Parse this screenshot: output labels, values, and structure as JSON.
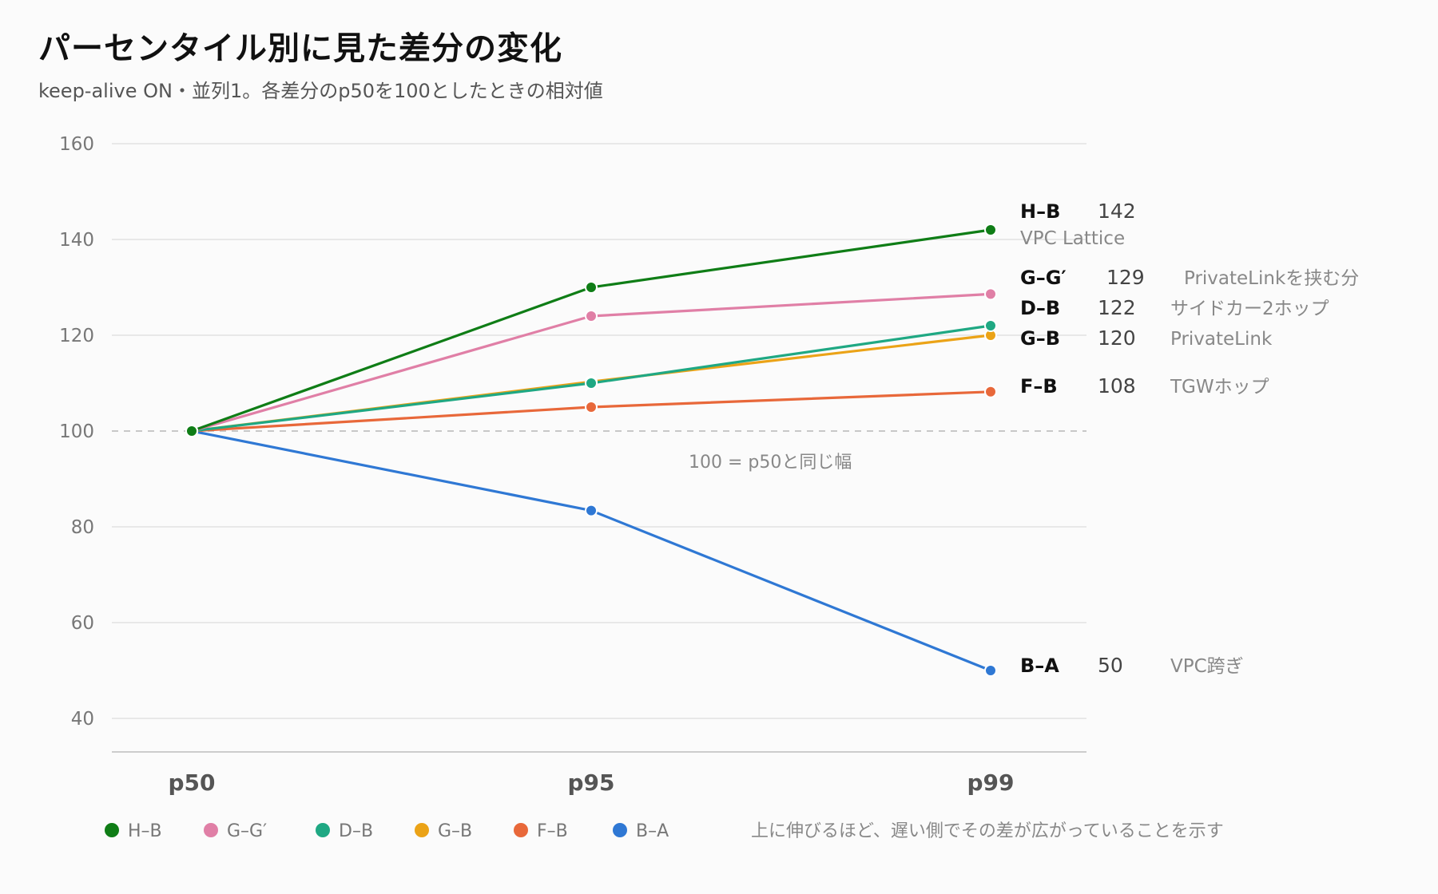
{
  "title": "パーセンタイル別に見た差分の変化",
  "subtitle": "keep-alive ON・並列1。各差分のp50を100としたときの相対値",
  "footer_note": "上に伸びるほど、遅い側でその差が広がっていることを示す",
  "chart_data": {
    "type": "line",
    "title": "パーセンタイル別に見た差分の変化",
    "subtitle": "keep-alive ON・並列1。各差分のp50を100としたときの相対値",
    "x": [
      "p50",
      "p95",
      "p99"
    ],
    "ylim": [
      35,
      160
    ],
    "yticks": [
      160,
      140,
      120,
      100,
      80,
      60,
      40
    ],
    "grid": true,
    "legend_position": "bottom-left",
    "reference_line": {
      "value": 100,
      "label": "100 = p50と同じ幅"
    },
    "series": [
      {
        "name": "H–B",
        "values": [
          100,
          130,
          142
        ],
        "end_value": "142",
        "note": "VPC Lattice",
        "color": "#0f7d16"
      },
      {
        "name": "G–G′",
        "values": [
          100,
          124,
          128.6
        ],
        "end_value": "129",
        "note": "PrivateLinkを挟む分",
        "color": "#e07fa6"
      },
      {
        "name": "D–B",
        "values": [
          100,
          110,
          122
        ],
        "end_value": "122",
        "note": "サイドカー2ホップ",
        "color": "#1fa883"
      },
      {
        "name": "G–B",
        "values": [
          100,
          110.3,
          120
        ],
        "end_value": "120",
        "note": "PrivateLink",
        "color": "#eba317"
      },
      {
        "name": "F–B",
        "values": [
          100,
          105,
          108.2
        ],
        "end_value": "108",
        "note": "TGWホップ",
        "color": "#e8683a"
      },
      {
        "name": "B–A",
        "values": [
          100,
          83.4,
          50
        ],
        "end_value": "50",
        "note": "VPC跨ぎ",
        "color": "#2f78d4"
      }
    ]
  }
}
